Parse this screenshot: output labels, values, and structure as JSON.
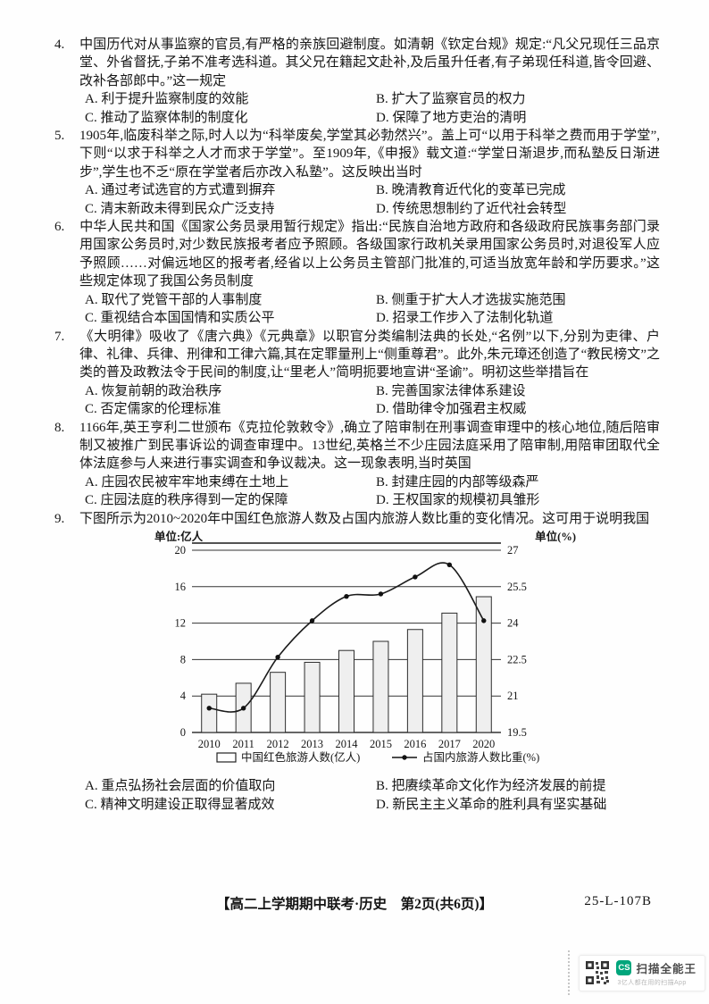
{
  "questions": [
    {
      "number": "4.",
      "stem": "中国历代对从事监察的官员,有严格的亲族回避制度。如清朝《钦定台规》规定:“凡父兄现任三品京堂、外省督抚,子弟不准考选科道。其父兄在籍起文赴补,及后虽升任者,有子弟现任科道,皆令回避、改补各部郎中。”这一规定",
      "options": [
        "A. 利于提升监察制度的效能",
        "B. 扩大了监察官员的权力",
        "C. 推动了监察体制的制度化",
        "D. 保障了地方吏治的清明"
      ]
    },
    {
      "number": "5.",
      "stem": "1905年,临废科举之际,时人以为“科举废矣,学堂其必勃然兴”。盖上可“以用于科举之费而用于学堂”,下则“以求于科举之人才而求于学堂”。至1909年,《申报》载文道:“学堂日渐退步,而私塾反日渐进步”,学生也不乏“原在学堂者后亦改入私塾”。这反映出当时",
      "options": [
        "A. 通过考试选官的方式遭到摒弃",
        "B. 晚清教育近代化的变革已完成",
        "C. 清末新政未得到民众广泛支持",
        "D. 传统思想制约了近代社会转型"
      ]
    },
    {
      "number": "6.",
      "stem": "中华人民共和国《国家公务员录用暂行规定》指出:“民族自治地方政府和各级政府民族事务部门录用国家公务员时,对少数民族报考者应予照顾。各级国家行政机关录用国家公务员时,对退役军人应予照顾……对偏远地区的报考者,经省以上公务员主管部门批准的,可适当放宽年龄和学历要求。”这些规定体现了我国公务员制度",
      "options": [
        "A. 取代了党管干部的人事制度",
        "B. 侧重于扩大人才选拔实施范围",
        "C. 重视结合本国国情和实质公平",
        "D. 招录工作步入了法制化轨道"
      ]
    },
    {
      "number": "7.",
      "stem": "《大明律》吸收了《唐六典》《元典章》以职官分类编制法典的长处,“名例”以下,分别为吏律、户律、礼律、兵律、刑律和工律六篇,其在定罪量刑上“侧重尊君”。此外,朱元璋还创造了“教民榜文”之类的普及政教法令于民间的制度,让“里老人”简明扼要地宣讲“圣谕”。明初这些举措旨在",
      "options": [
        "A. 恢复前朝的政治秩序",
        "B. 完善国家法律体系建设",
        "C. 否定儒家的伦理标准",
        "D. 借助律令加强君主权威"
      ]
    },
    {
      "number": "8.",
      "stem": "1166年,英王亨利二世颁布《克拉伦敦敕令》,确立了陪审制在刑事调查审理中的核心地位,随后陪审制又被推广到民事诉讼的调查审理中。13世纪,英格兰不少庄园法庭采用了陪审制,用陪审团取代全体法庭参与人来进行事实调查和争议裁决。这一现象表明,当时英国",
      "options": [
        "A. 庄园农民被牢牢地束缚在土地上",
        "B. 封建庄园的内部等级森严",
        "C. 庄园法庭的秩序得到一定的保障",
        "D. 王权国家的规模初具雏形"
      ]
    },
    {
      "number": "9.",
      "stem": "下图所示为2010~2020年中国红色旅游人数及占国内旅游人数比重的变化情况。这可用于说明我国",
      "options": [
        "A. 重点弘扬社会层面的价值取向",
        "B. 把赓续革命文化作为经济发展的前提",
        "C. 精神文明建设正取得显著成效",
        "D. 新民主主义革命的胜利具有坚实基础"
      ]
    }
  ],
  "chart_data": {
    "type": "bar",
    "categories": [
      "2010",
      "2011",
      "2012",
      "2013",
      "2014",
      "2015",
      "2016",
      "2017",
      "2020"
    ],
    "series": [
      {
        "name": "中国红色旅游人数(亿人)",
        "type": "bar",
        "axis": "left",
        "values": [
          4.2,
          5.4,
          6.6,
          7.7,
          9.0,
          10.0,
          11.3,
          13.1,
          14.9
        ]
      },
      {
        "name": "占国内旅游人数比重(%)",
        "type": "line",
        "axis": "right",
        "values": [
          20.5,
          20.5,
          22.6,
          24.1,
          25.1,
          25.2,
          25.9,
          26.4,
          24.1
        ]
      }
    ],
    "left_axis": {
      "label": "单位:亿人",
      "ticks": [
        0,
        4,
        8,
        12,
        16,
        20
      ],
      "min": 0,
      "max": 20
    },
    "right_axis": {
      "label": "单位(%)",
      "ticks": [
        19.5,
        21,
        22.5,
        24,
        25.5,
        27
      ],
      "min": 19.5,
      "max": 27
    },
    "legend_position": "bottom",
    "grid": true,
    "bar_fill": "#efefef",
    "bar_stroke": "#2d2d2d",
    "line_color": "#1b1b1b"
  },
  "footer": {
    "center": "【高二上学期期中联考·历史　第2页(共6页)】",
    "code": "25-L-107B"
  },
  "watermark": {
    "badge": "CS",
    "brand": "扫描全能王",
    "sub": "3亿人都在用的扫描App",
    "brand_color": "#00a67c"
  }
}
